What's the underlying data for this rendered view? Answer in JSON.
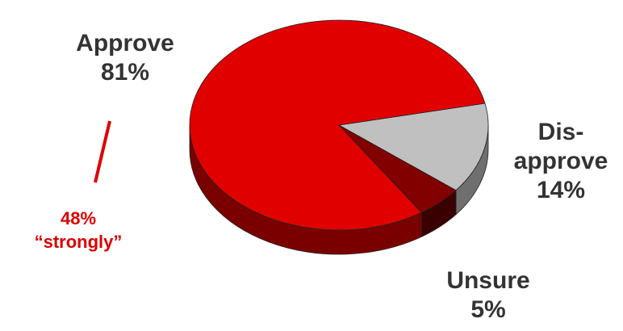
{
  "chart_data": {
    "type": "pie",
    "slices": [
      {
        "label": "Approve",
        "value": 81,
        "display": "81%",
        "color": "#e10000",
        "side_color": "#7a0000"
      },
      {
        "label": "Dis-approve",
        "value": 14,
        "display": "14%",
        "color": "#c0c0c0",
        "side_color": "#6f6f6f"
      },
      {
        "label": "Unsure",
        "value": 5,
        "display": "5%",
        "color": "#820000",
        "side_color": "#3a0000"
      }
    ],
    "annotation": {
      "value": "48%",
      "text": "“strongly”",
      "color": "#dd0000"
    },
    "style": "3d"
  },
  "labels": {
    "approve_name": "Approve",
    "approve_value": "81%",
    "disapprove_name_1": "Dis-",
    "disapprove_name_2": "approve",
    "disapprove_value": "14%",
    "unsure_name": "Unsure",
    "unsure_value": "5%",
    "strongly_value": "48%",
    "strongly_text": "“strongly”"
  }
}
